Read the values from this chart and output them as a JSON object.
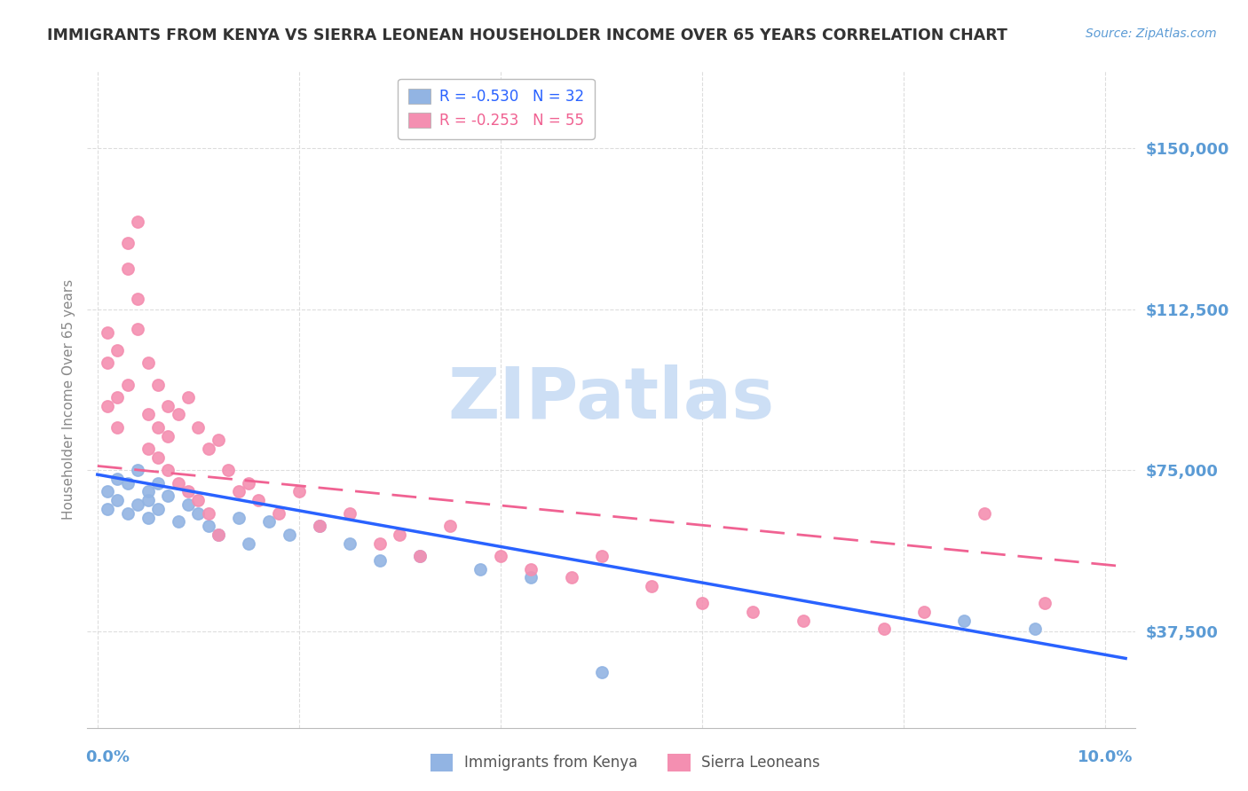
{
  "title": "IMMIGRANTS FROM KENYA VS SIERRA LEONEAN HOUSEHOLDER INCOME OVER 65 YEARS CORRELATION CHART",
  "source": "Source: ZipAtlas.com",
  "ylabel": "Householder Income Over 65 years",
  "ytick_labels": [
    "$37,500",
    "$75,000",
    "$112,500",
    "$150,000"
  ],
  "ytick_values": [
    37500,
    75000,
    112500,
    150000
  ],
  "ymax": 168000,
  "ymin": 15000,
  "xmin": -0.001,
  "xmax": 0.103,
  "kenya_R": -0.53,
  "kenya_N": 32,
  "sierra_R": -0.253,
  "sierra_N": 55,
  "kenya_color": "#92b4e3",
  "sierra_color": "#f48fb1",
  "kenya_line_color": "#2962ff",
  "sierra_line_color": "#f06292",
  "watermark": "ZIPatlas",
  "watermark_color": "#cddff5",
  "grid_color": "#dddddd",
  "title_color": "#333333",
  "axis_label_color": "#5b9bd5",
  "kenya_points_x": [
    0.001,
    0.001,
    0.002,
    0.002,
    0.003,
    0.003,
    0.004,
    0.004,
    0.005,
    0.005,
    0.005,
    0.006,
    0.006,
    0.007,
    0.008,
    0.009,
    0.01,
    0.011,
    0.012,
    0.014,
    0.015,
    0.017,
    0.019,
    0.022,
    0.025,
    0.028,
    0.032,
    0.038,
    0.043,
    0.05,
    0.086,
    0.093
  ],
  "kenya_points_y": [
    70000,
    66000,
    73000,
    68000,
    65000,
    72000,
    67000,
    75000,
    64000,
    70000,
    68000,
    66000,
    72000,
    69000,
    63000,
    67000,
    65000,
    62000,
    60000,
    64000,
    58000,
    63000,
    60000,
    62000,
    58000,
    54000,
    55000,
    52000,
    50000,
    28000,
    40000,
    38000
  ],
  "sierra_points_x": [
    0.001,
    0.001,
    0.001,
    0.002,
    0.002,
    0.002,
    0.003,
    0.003,
    0.003,
    0.004,
    0.004,
    0.004,
    0.005,
    0.005,
    0.005,
    0.006,
    0.006,
    0.006,
    0.007,
    0.007,
    0.007,
    0.008,
    0.008,
    0.009,
    0.009,
    0.01,
    0.01,
    0.011,
    0.011,
    0.012,
    0.012,
    0.013,
    0.014,
    0.015,
    0.016,
    0.018,
    0.02,
    0.022,
    0.025,
    0.028,
    0.03,
    0.032,
    0.035,
    0.04,
    0.043,
    0.047,
    0.05,
    0.055,
    0.06,
    0.065,
    0.07,
    0.078,
    0.082,
    0.088,
    0.094
  ],
  "sierra_points_y": [
    100000,
    90000,
    107000,
    103000,
    92000,
    85000,
    128000,
    122000,
    95000,
    133000,
    115000,
    108000,
    100000,
    88000,
    80000,
    85000,
    95000,
    78000,
    90000,
    75000,
    83000,
    88000,
    72000,
    92000,
    70000,
    85000,
    68000,
    80000,
    65000,
    82000,
    60000,
    75000,
    70000,
    72000,
    68000,
    65000,
    70000,
    62000,
    65000,
    58000,
    60000,
    55000,
    62000,
    55000,
    52000,
    50000,
    55000,
    48000,
    44000,
    42000,
    40000,
    38000,
    42000,
    65000,
    44000
  ]
}
